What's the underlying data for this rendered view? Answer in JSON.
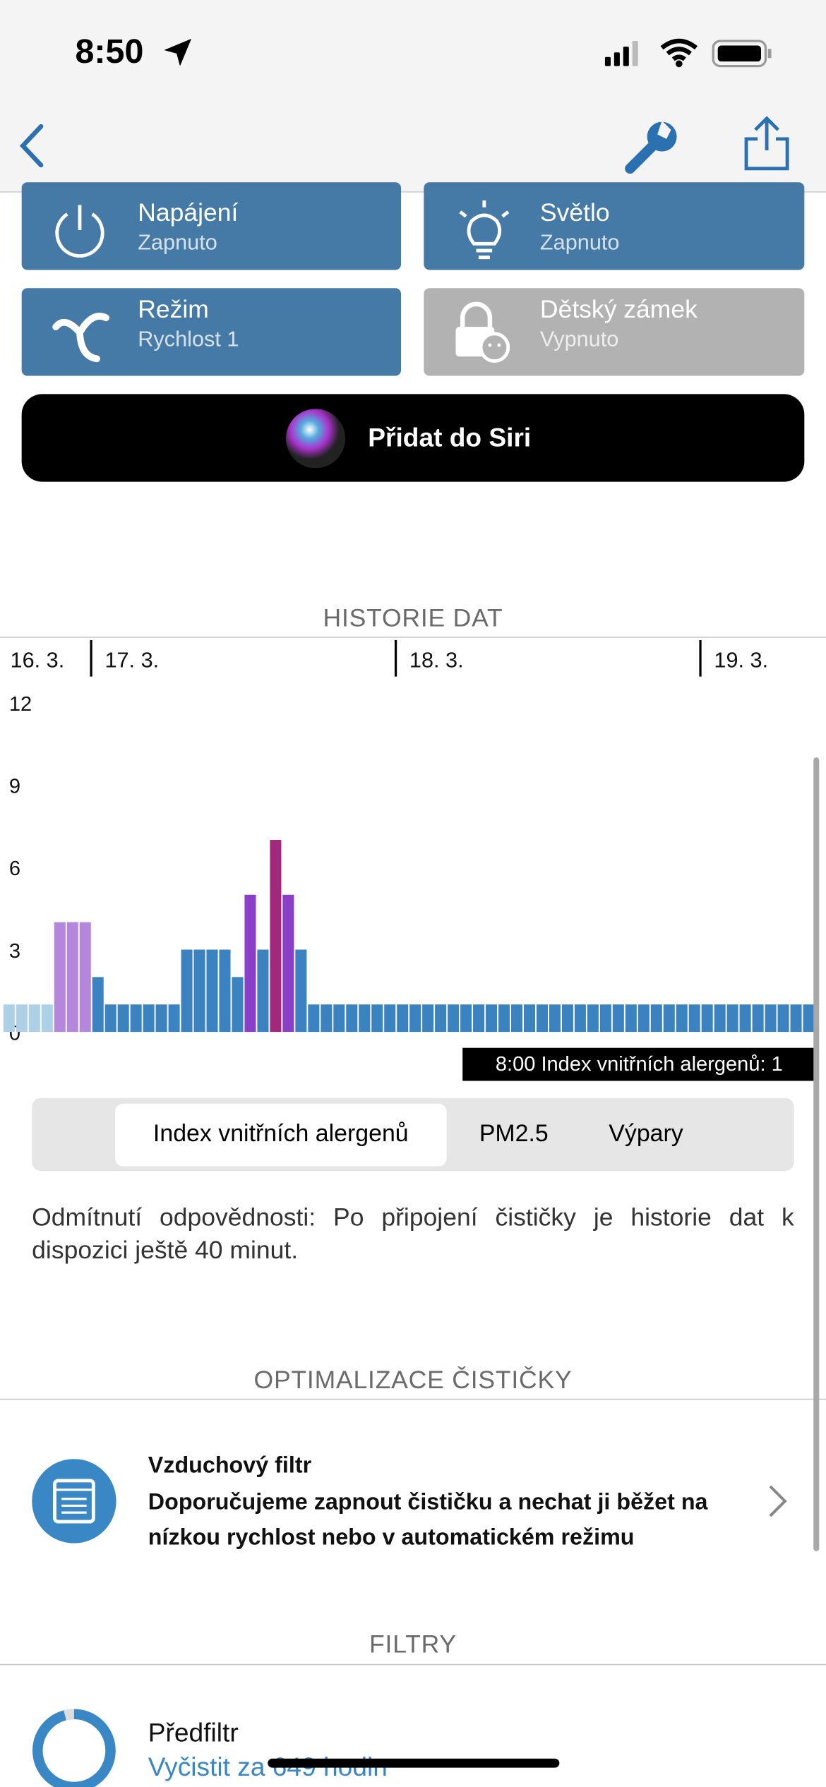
{
  "status_bar": {
    "time": "8:50"
  },
  "controls": [
    {
      "title": "Napájení",
      "state": "Zapnuto",
      "active": true
    },
    {
      "title": "Světlo",
      "state": "Zapnuto",
      "active": true
    },
    {
      "title": "Režim",
      "state": "Rychlost 1",
      "active": true
    },
    {
      "title": "Dětský zámek",
      "state": "Vypnuto",
      "active": false
    }
  ],
  "siri_button": "Přidat do Siri",
  "history": {
    "title": "HISTORIE DAT",
    "tooltip": "8:00 Index vnitřních alergenů: 1",
    "tabs": [
      "Index vnitřních alergenů",
      "PM2.5",
      "Výpary"
    ],
    "selected_tab": 0,
    "disclaimer": "Odmítnutí odpovědnosti: Po připojení čističky je historie dat k dispozici ještě 40 minut."
  },
  "chart_data": {
    "type": "bar",
    "categories": [
      "16. 3.",
      null,
      null,
      null,
      null,
      null,
      null,
      "17. 3.",
      null,
      null,
      null,
      null,
      null,
      null,
      null,
      null,
      null,
      null,
      null,
      null,
      null,
      null,
      null,
      null,
      null,
      null,
      null,
      null,
      null,
      null,
      null,
      "18. 3.",
      null,
      null,
      null,
      null,
      null,
      null,
      null,
      null,
      null,
      null,
      null,
      null,
      null,
      null,
      null,
      null,
      null,
      null,
      null,
      null,
      null,
      null,
      null,
      "19. 3.",
      null,
      null,
      null,
      null,
      null,
      null,
      null,
      null
    ],
    "values": [
      1,
      1,
      1,
      1,
      4,
      4,
      4,
      2,
      1,
      1,
      1,
      1,
      1,
      1,
      3,
      3,
      3,
      3,
      2,
      5,
      3,
      7,
      5,
      3,
      1,
      1,
      1,
      1,
      1,
      1,
      1,
      1,
      1,
      1,
      1,
      1,
      1,
      1,
      1,
      1,
      1,
      1,
      1,
      1,
      1,
      1,
      1,
      1,
      1,
      1,
      1,
      1,
      1,
      1,
      1,
      1,
      1,
      1,
      1,
      1,
      1,
      1,
      1,
      1
    ],
    "colors": [
      "#aed0e6",
      "#aed0e6",
      "#aed0e6",
      "#aed0e6",
      "#b486dc",
      "#b486dc",
      "#b486dc",
      "#3a82c0",
      "#3a82c0",
      "#3a82c0",
      "#3a82c0",
      "#3a82c0",
      "#3a82c0",
      "#3a82c0",
      "#3a82c0",
      "#3a82c0",
      "#3a82c0",
      "#3a82c0",
      "#3a82c0",
      "#8a3fc9",
      "#3a82c0",
      "#a1297c",
      "#8a3fc9",
      "#3a82c0",
      "#3a82c0",
      "#3a82c0",
      "#3a82c0",
      "#3a82c0",
      "#3a82c0",
      "#3a82c0",
      "#3a82c0",
      "#3a82c0",
      "#3a82c0",
      "#3a82c0",
      "#3a82c0",
      "#3a82c0",
      "#3a82c0",
      "#3a82c0",
      "#3a82c0",
      "#3a82c0",
      "#3a82c0",
      "#3a82c0",
      "#3a82c0",
      "#3a82c0",
      "#3a82c0",
      "#3a82c0",
      "#3a82c0",
      "#3a82c0",
      "#3a82c0",
      "#3a82c0",
      "#3a82c0",
      "#3a82c0",
      "#3a82c0",
      "#3a82c0",
      "#3a82c0",
      "#3a82c0",
      "#3a82c0",
      "#3a82c0",
      "#3a82c0",
      "#3a82c0",
      "#3a82c0",
      "#3a82c0",
      "#3a82c0",
      "#3a82c0"
    ],
    "ylim": [
      0,
      12
    ],
    "yticks": [
      0,
      3,
      6,
      9,
      12
    ]
  },
  "optimization": {
    "title": "OPTIMALIZACE ČISTIČKY",
    "item_title": "Vzduchový filtr",
    "item_text": "Doporučujeme zapnout čističku a nechat ji běžet na nízkou rychlost nebo v automatickém režimu"
  },
  "filters": {
    "title": "FILTRY",
    "items": [
      {
        "name": "Předfiltr",
        "status": "Vyčistit za 649 hodin"
      }
    ]
  }
}
